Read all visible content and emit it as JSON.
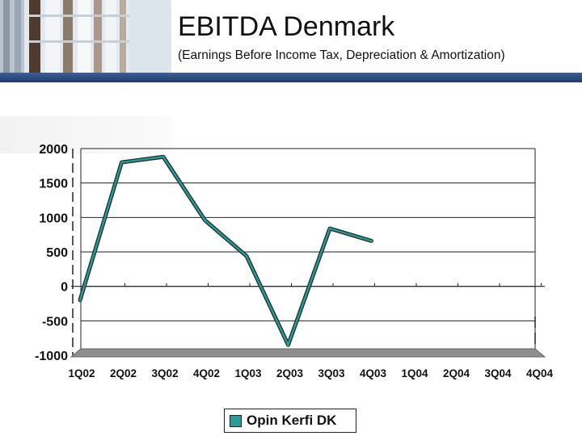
{
  "header": {
    "title": "EBITDA Denmark",
    "subtitle": "(Earnings Before Income Tax, Depreciation & Amortization)",
    "band_color": "#1c3a6e"
  },
  "chart_data": {
    "type": "line",
    "title": "",
    "xlabel": "",
    "ylabel": "",
    "categories": [
      "1Q02",
      "2Q02",
      "3Q02",
      "4Q02",
      "1Q03",
      "2Q03",
      "3Q03",
      "4Q03",
      "1Q04",
      "2Q04",
      "3Q04",
      "4Q04"
    ],
    "yticks": [
      -1000,
      -500,
      0,
      500,
      1000,
      1500,
      2000
    ],
    "ylim": [
      -1000,
      2000
    ],
    "grid": true,
    "legend_position": "bottom",
    "series": [
      {
        "name": "Opin Kerfi DK",
        "color": "#2a9b98",
        "values": [
          -200,
          1800,
          1880,
          960,
          440,
          -850,
          840,
          660,
          null,
          null,
          null,
          null
        ]
      }
    ]
  }
}
